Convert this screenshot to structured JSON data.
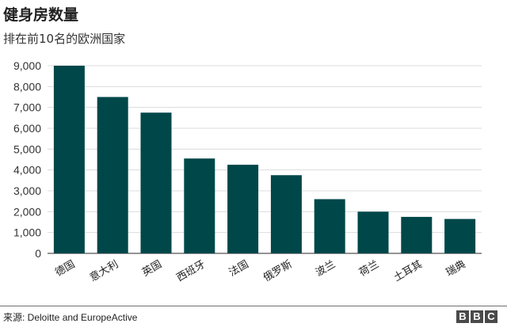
{
  "header": {
    "title": "健身房数量",
    "subtitle": "排在前10名的欧洲国家"
  },
  "footer": {
    "source": "来源: Deloitte and EuropeActive",
    "logo_letters": [
      "B",
      "B",
      "C"
    ]
  },
  "colors": {
    "bar": "#00474a",
    "grid": "#dcdcdc",
    "axis": "#555555"
  },
  "chart_data": {
    "type": "bar",
    "title": "健身房数量",
    "subtitle": "排在前10名的欧洲国家",
    "xlabel": "",
    "ylabel": "",
    "categories": [
      "德国",
      "意大利",
      "英国",
      "西班牙",
      "法国",
      "俄罗斯",
      "波兰",
      "荷兰",
      "土耳其",
      "瑞典"
    ],
    "values": [
      9000,
      7500,
      6750,
      4550,
      4250,
      3750,
      2600,
      2000,
      1750,
      1650
    ],
    "ylim": [
      0,
      9000
    ],
    "yticks": [
      0,
      1000,
      2000,
      3000,
      4000,
      5000,
      6000,
      7000,
      8000,
      9000
    ],
    "ytick_labels": [
      "0",
      "1,000",
      "2,000",
      "3,000",
      "4,000",
      "5,000",
      "6,000",
      "7,000",
      "8,000",
      "9,000"
    ],
    "grid": true,
    "legend": "none"
  }
}
